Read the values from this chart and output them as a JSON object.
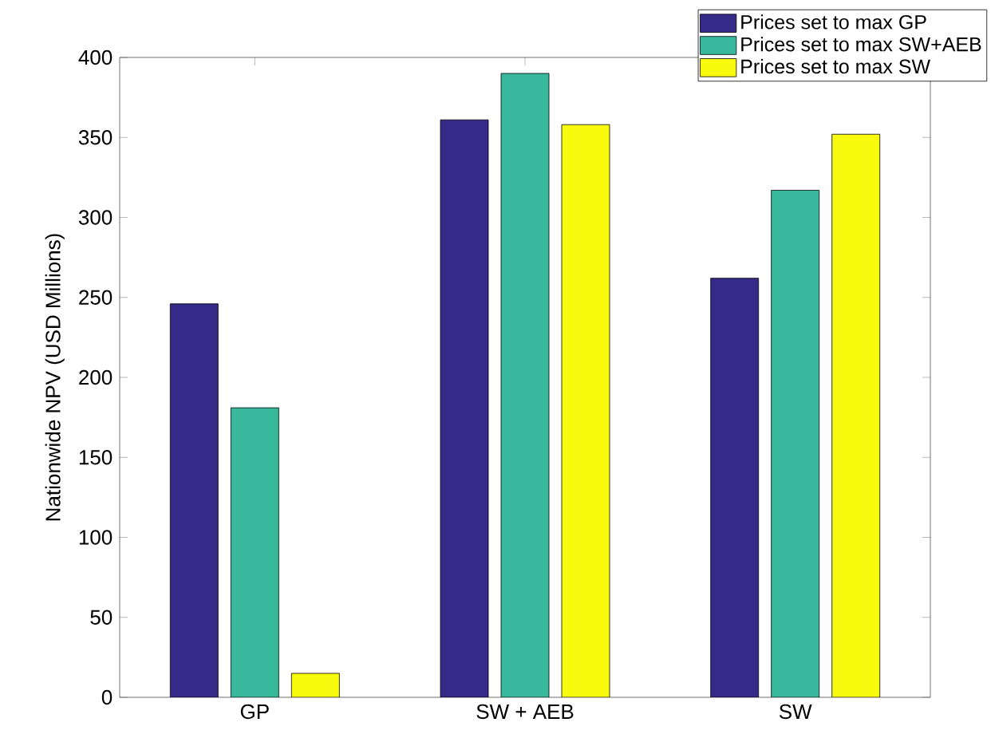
{
  "chart_data": {
    "type": "bar",
    "ylabel": "Nationwide NPV (USD Millions)",
    "categories": [
      "GP",
      "SW + AEB",
      "SW"
    ],
    "series": [
      {
        "name": "Prices set to max GP",
        "color": "#352a87",
        "values": [
          246,
          361,
          262
        ]
      },
      {
        "name": "Prices set to max SW+AEB",
        "color": "#38b99e",
        "values": [
          181,
          390,
          317
        ]
      },
      {
        "name": "Prices set to max SW",
        "color": "#f9fb0e",
        "values": [
          15,
          358,
          352
        ]
      }
    ],
    "ylim": [
      0,
      400
    ],
    "yticks": [
      0,
      50,
      100,
      150,
      200,
      250,
      300,
      350,
      400
    ],
    "legend": "top right"
  }
}
